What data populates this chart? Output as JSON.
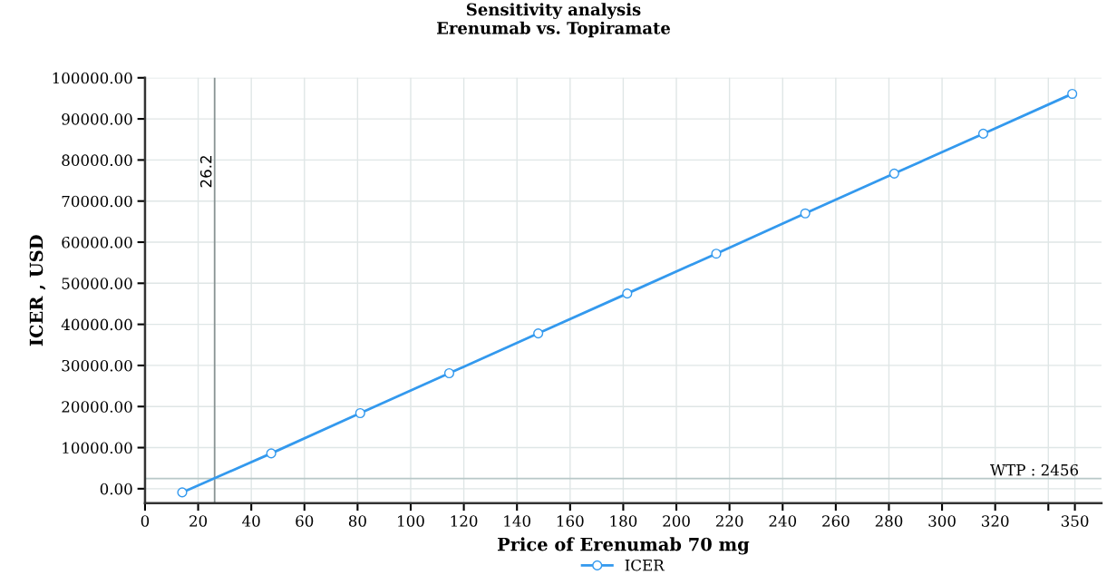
{
  "chart_data": {
    "type": "line",
    "title": "Sensitivity analysis\nErenumab vs. Topiramate",
    "xlabel": "Price of Erenumab 70 mg",
    "ylabel": "ICER , USD",
    "x": [
      14,
      47.5,
      81,
      114.5,
      148,
      181.5,
      215,
      248.5,
      282,
      315.5,
      349
    ],
    "series": [
      {
        "name": "ICER",
        "color": "#3399ee",
        "values": [
          -900,
          8600,
          18400,
          28100,
          37800,
          47500,
          57200,
          67000,
          76700,
          86400,
          96100
        ]
      }
    ],
    "xlim": [
      0,
      360
    ],
    "xticks": [
      0,
      20,
      40,
      60,
      80,
      100,
      120,
      140,
      160,
      180,
      200,
      220,
      240,
      260,
      280,
      300,
      320,
      {
        "value": 340,
        "label": null
      },
      350
    ],
    "ylim": [
      -3500,
      100000
    ],
    "yticks": [
      {
        "value": 0,
        "label": "0.00"
      },
      {
        "value": 10000,
        "label": "10000.00"
      },
      {
        "value": 20000,
        "label": "20000.00"
      },
      {
        "value": 30000,
        "label": "30000.00"
      },
      {
        "value": 40000,
        "label": "40000.00"
      },
      {
        "value": 50000,
        "label": "50000.00"
      },
      {
        "value": 60000,
        "label": "60000.00"
      },
      {
        "value": 70000,
        "label": "70000.00"
      },
      {
        "value": 80000,
        "label": "80000.00"
      },
      {
        "value": 90000,
        "label": "90000.00"
      },
      {
        "value": 100000,
        "label": "100000.00"
      }
    ],
    "ref_lines": [
      {
        "axis": "x",
        "value": 26.2,
        "label": "26.2",
        "color": "#8a9494"
      },
      {
        "axis": "y",
        "value": 2456,
        "label": "WTP : 2456",
        "color": "#b8c8c8"
      }
    ],
    "grid": true,
    "legend": "bottom",
    "marker": "circle",
    "line_style": "solid"
  }
}
